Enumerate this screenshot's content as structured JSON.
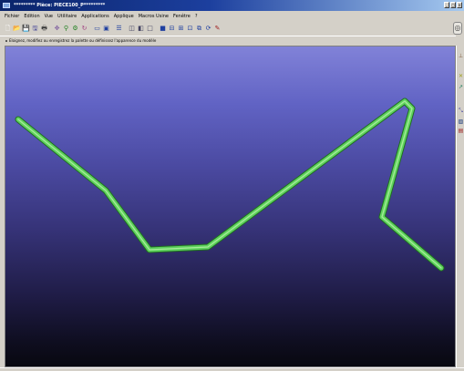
{
  "window": {
    "title": "********* Pièce: PIECE100_P*********",
    "min_label": "_",
    "max_label": "□",
    "close_label": "×"
  },
  "menu": {
    "items": [
      "Fichier",
      "Edition",
      "Vue",
      "Utilitaire",
      "Applications",
      "Applique",
      "Macros Usine",
      "Fenêtre",
      "?"
    ]
  },
  "toolbar": {
    "icons": [
      {
        "name": "new-file-icon",
        "glyph": "🗋",
        "color": "#ffffff"
      },
      {
        "name": "open-folder-icon",
        "glyph": "📂",
        "color": "#d8a020"
      },
      {
        "name": "save-icon",
        "glyph": "💾",
        "color": "#303090"
      },
      {
        "name": "save-all-icon",
        "glyph": "🖫",
        "color": "#303090"
      },
      {
        "name": "print-icon",
        "glyph": "🖶",
        "color": "#404040"
      },
      {
        "name": "sep"
      },
      {
        "name": "pan-icon",
        "glyph": "✥",
        "color": "#8060a0"
      },
      {
        "name": "zoom-icon",
        "glyph": "⚲",
        "color": "#208020"
      },
      {
        "name": "measure-icon",
        "glyph": "⚙",
        "color": "#208020"
      },
      {
        "name": "rotate-icon",
        "glyph": "↻",
        "color": "#a04080"
      },
      {
        "name": "sep"
      },
      {
        "name": "window-icon",
        "glyph": "▭",
        "color": "#2040a0"
      },
      {
        "name": "frame-icon",
        "glyph": "▣",
        "color": "#2040a0"
      },
      {
        "name": "sep"
      },
      {
        "name": "list-icon",
        "glyph": "☰",
        "color": "#2040a0"
      },
      {
        "name": "sep"
      },
      {
        "name": "view-front-icon",
        "glyph": "◫",
        "color": "#404060"
      },
      {
        "name": "view-top-icon",
        "glyph": "◧",
        "color": "#404060"
      },
      {
        "name": "view-side-icon",
        "glyph": "□",
        "color": "#404060"
      },
      {
        "name": "sep"
      },
      {
        "name": "shaded-view-icon",
        "glyph": "■",
        "color": "#2040a0"
      },
      {
        "name": "hidden-lines-icon",
        "glyph": "⊟",
        "color": "#2040a0"
      },
      {
        "name": "wireframe-icon",
        "glyph": "⊞",
        "color": "#2040a0"
      },
      {
        "name": "orient-icon",
        "glyph": "⊡",
        "color": "#2040a0"
      },
      {
        "name": "view-manager-icon",
        "glyph": "⧉",
        "color": "#2040a0"
      },
      {
        "name": "refit-icon",
        "glyph": "⟳",
        "color": "#2040a0"
      },
      {
        "name": "highlight-icon",
        "glyph": "✎",
        "color": "#a02020"
      }
    ],
    "compass_glyph": "◎"
  },
  "hint": {
    "text": "Eloignez, modifiez ou enregistrez la palette ou définissez l'apparence du modèle"
  },
  "right_panel": {
    "icons": [
      {
        "name": "datum-icon",
        "glyph": "⊥",
        "color": "#806040"
      },
      {
        "name": "point-icon",
        "glyph": "✕",
        "color": "#a0a020"
      },
      {
        "name": "axis-icon",
        "glyph": "↗",
        "color": "#208060"
      },
      {
        "name": "csys-icon",
        "glyph": "⤡",
        "color": "#4040a0"
      },
      {
        "name": "sketch-icon",
        "glyph": "▨",
        "color": "#204080"
      },
      {
        "name": "layer-icon",
        "glyph": "▤",
        "color": "#a02020"
      }
    ]
  },
  "model": {
    "tube_color": "#5fd25f",
    "tube_dark": "#1f6e1f",
    "tube_highlight": "#c6f7b0"
  }
}
